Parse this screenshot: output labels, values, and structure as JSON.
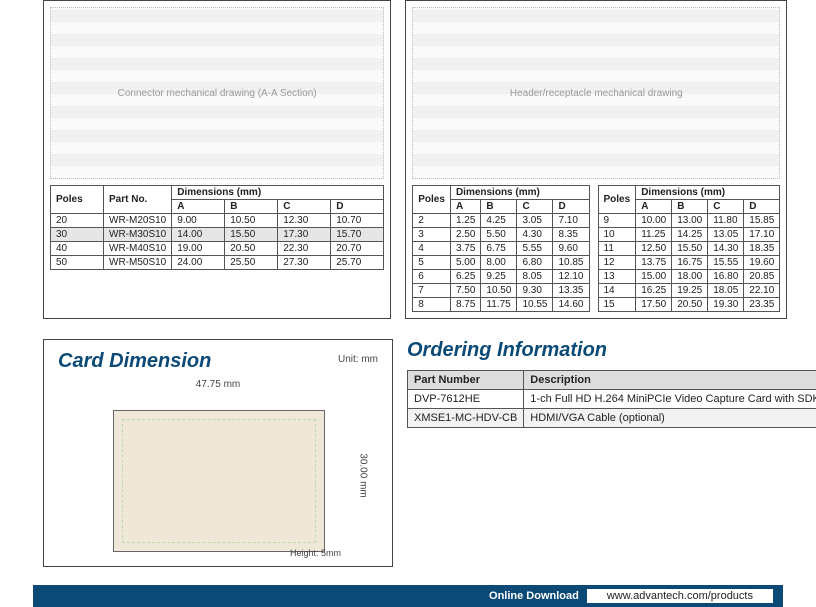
{
  "left_panel": {
    "drawing_note": "Connector mechanical drawing (A-A Section)",
    "table": {
      "dim_label": "Dimensions (mm)",
      "headers_top": [
        "Poles",
        "Part No."
      ],
      "dim_cols": [
        "A",
        "B",
        "C",
        "D"
      ],
      "rows": [
        {
          "poles": "20",
          "part": "WR-M20S10",
          "a": "9.00",
          "b": "10.50",
          "c": "12.30",
          "d": "10.70",
          "hl": false
        },
        {
          "poles": "30",
          "part": "WR-M30S10",
          "a": "14.00",
          "b": "15.50",
          "c": "17.30",
          "d": "15.70",
          "hl": true
        },
        {
          "poles": "40",
          "part": "WR-M40S10",
          "a": "19.00",
          "b": "20.50",
          "c": "22.30",
          "d": "20.70",
          "hl": false
        },
        {
          "poles": "50",
          "part": "WR-M50S10",
          "a": "24.00",
          "b": "25.50",
          "c": "27.30",
          "d": "25.70",
          "hl": false
        }
      ]
    }
  },
  "right_panel": {
    "drawing_note": "Header/receptacle mechanical drawing",
    "dim_label": "Dimensions (mm)",
    "dim_cols": [
      "A",
      "B",
      "C",
      "D"
    ],
    "tableA": [
      {
        "poles": "2",
        "a": "1.25",
        "b": "4.25",
        "c": "3.05",
        "d": "7.10"
      },
      {
        "poles": "3",
        "a": "2.50",
        "b": "5.50",
        "c": "4.30",
        "d": "8.35"
      },
      {
        "poles": "4",
        "a": "3.75",
        "b": "6.75",
        "c": "5.55",
        "d": "9.60"
      },
      {
        "poles": "5",
        "a": "5.00",
        "b": "8.00",
        "c": "6.80",
        "d": "10.85"
      },
      {
        "poles": "6",
        "a": "6.25",
        "b": "9.25",
        "c": "8.05",
        "d": "12.10"
      },
      {
        "poles": "7",
        "a": "7.50",
        "b": "10.50",
        "c": "9.30",
        "d": "13.35"
      },
      {
        "poles": "8",
        "a": "8.75",
        "b": "11.75",
        "c": "10.55",
        "d": "14.60"
      }
    ],
    "tableB": [
      {
        "poles": "9",
        "a": "10.00",
        "b": "13.00",
        "c": "11.80",
        "d": "15.85"
      },
      {
        "poles": "10",
        "a": "11.25",
        "b": "14.25",
        "c": "13.05",
        "d": "17.10"
      },
      {
        "poles": "11",
        "a": "12.50",
        "b": "15.50",
        "c": "14.30",
        "d": "18.35"
      },
      {
        "poles": "12",
        "a": "13.75",
        "b": "16.75",
        "c": "15.55",
        "d": "19.60"
      },
      {
        "poles": "13",
        "a": "15.00",
        "b": "18.00",
        "c": "16.80",
        "d": "20.85"
      },
      {
        "poles": "14",
        "a": "16.25",
        "b": "19.25",
        "c": "18.05",
        "d": "22.10"
      },
      {
        "poles": "15",
        "a": "17.50",
        "b": "20.50",
        "c": "19.30",
        "d": "23.35"
      }
    ]
  },
  "card_dimension": {
    "title": "Card Dimension",
    "unit_label": "Unit: mm",
    "width_label": "47.75 mm",
    "height_label": "30.00 mm",
    "height_note": "Height: 5mm"
  },
  "ordering": {
    "title": "Ordering Information",
    "headers": [
      "Part Number",
      "Description"
    ],
    "rows": [
      {
        "pn": "DVP-7612HE",
        "desc": "1-ch Full HD H.264 MiniPCIe Video Capture Card with SDK"
      },
      {
        "pn": "XMSE1-MC-HDV-CB",
        "desc": "HDMI/VGA Cable (optional)"
      }
    ]
  },
  "footer": {
    "label": "Online Download",
    "url": "www.advantech.com/products"
  }
}
